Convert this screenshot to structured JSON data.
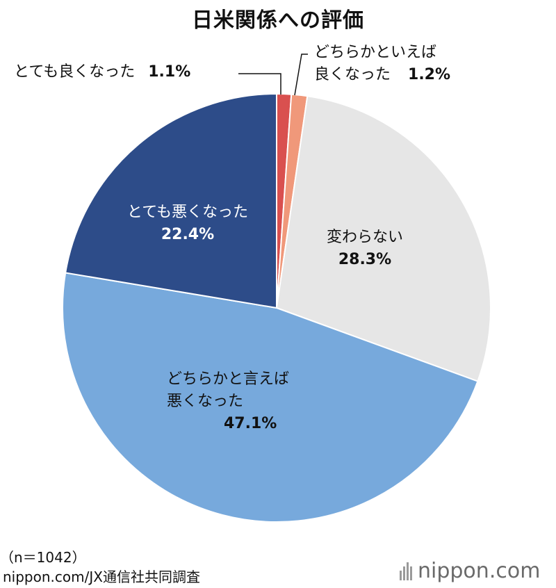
{
  "chart_data": {
    "type": "pie",
    "title": "日米関係への評価",
    "slices": [
      {
        "label": "とても良くなった",
        "value": 1.1,
        "label_text": "1.1%",
        "color": "#d9504f"
      },
      {
        "label": "どちらかといえば良くなった",
        "label_lines": [
          "どちらかといえば",
          "良くなった"
        ],
        "value": 1.2,
        "label_text": "1.2%",
        "color": "#f0987a"
      },
      {
        "label": "変わらない",
        "value": 28.3,
        "label_text": "28.3%",
        "color": "#e6e6e6"
      },
      {
        "label": "どちらかと言えば悪くなった",
        "label_lines": [
          "どちらかと言えば",
          "悪くなった"
        ],
        "value": 47.1,
        "label_text": "47.1%",
        "color": "#77a9dc"
      },
      {
        "label": "とても悪くなった",
        "value": 22.4,
        "label_text": "22.4%",
        "color": "#2d4c89"
      }
    ],
    "start": "12 o'clock",
    "direction": "clockwise"
  },
  "footer": {
    "sample": "（n＝1042）",
    "source": "nippon.com/JX通信社共同調査"
  },
  "brand": {
    "name": "nippon",
    "suffix": ".com"
  }
}
